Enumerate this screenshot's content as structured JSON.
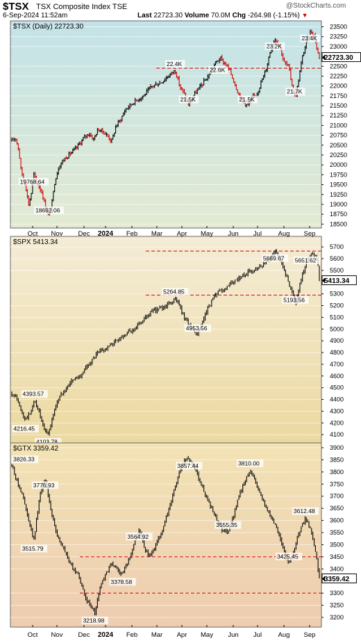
{
  "header": {
    "symbol": "$TSX",
    "name": "TSX Composite Index",
    "exchange": "TSE",
    "datetime": "6-Sep-2024 11:52am",
    "last_label": "Last",
    "last_value": "22723.30",
    "volume_label": "Volume",
    "volume_value": "70.0M",
    "chg_label": "Chg",
    "chg_value": "-264.98 (-1.15%)",
    "logo": "@StockCharts.com"
  },
  "x_axis": {
    "labels": [
      "Oct",
      "Nov",
      "Dec",
      "2024",
      "Feb",
      "Mar",
      "Apr",
      "May",
      "Jun",
      "Jul",
      "Aug",
      "Sep"
    ]
  },
  "chart_data": [
    {
      "type": "line",
      "title": "$TSX (Daily) 22723.30",
      "last": "22723.30",
      "ylim": [
        18400,
        23650
      ],
      "yticks": [
        18500,
        18750,
        19000,
        19250,
        19500,
        19750,
        20000,
        20250,
        20500,
        20750,
        21000,
        21250,
        21500,
        21750,
        22000,
        22250,
        22500,
        22723.3,
        23000,
        23250,
        23500
      ],
      "ytick_labels": [
        "18500",
        "18750",
        "19000",
        "19250",
        "19500",
        "19750",
        "20000",
        "20250",
        "20500",
        "20750",
        "21000",
        "21250",
        "21500",
        "21750",
        "22000",
        "22250",
        "22500",
        "22723.30",
        "23000",
        "23250",
        "23500"
      ],
      "anchors": [
        [
          0,
          20600
        ],
        [
          0.8,
          20700
        ],
        [
          1.5,
          20400
        ],
        [
          2,
          19900
        ],
        [
          2.5,
          19650
        ],
        [
          3,
          19500
        ],
        [
          3.7,
          19000
        ],
        [
          4.2,
          19200
        ],
        [
          4.8,
          19770
        ],
        [
          5.5,
          19550
        ],
        [
          6.5,
          19350
        ],
        [
          7.5,
          18900
        ],
        [
          8.2,
          18692
        ],
        [
          8.8,
          19000
        ],
        [
          9.5,
          19600
        ],
        [
          10.5,
          20000
        ],
        [
          12,
          20200
        ],
        [
          14,
          20400
        ],
        [
          16,
          20700
        ],
        [
          17,
          20800
        ],
        [
          18,
          20650
        ],
        [
          19,
          20900
        ],
        [
          20,
          20850
        ],
        [
          21,
          20750
        ],
        [
          22,
          20600
        ],
        [
          23,
          21000
        ],
        [
          24,
          21150
        ],
        [
          25,
          21400
        ],
        [
          27,
          21600
        ],
        [
          29,
          21750
        ],
        [
          31,
          22000
        ],
        [
          33,
          22100
        ],
        [
          35,
          22300
        ],
        [
          36,
          22400
        ],
        [
          37,
          22000
        ],
        [
          38,
          21800
        ],
        [
          39,
          21500
        ],
        [
          40,
          21750
        ],
        [
          41,
          21900
        ],
        [
          42,
          22050
        ],
        [
          43,
          22200
        ],
        [
          44,
          22400
        ],
        [
          45,
          22600
        ],
        [
          46,
          22700
        ],
        [
          47,
          22550
        ],
        [
          48,
          22400
        ],
        [
          49,
          22100
        ],
        [
          50,
          21800
        ],
        [
          51,
          21600
        ],
        [
          52,
          21500
        ],
        [
          53,
          21700
        ],
        [
          54,
          21800
        ],
        [
          55,
          22100
        ],
        [
          56,
          22400
        ],
        [
          57,
          22900
        ],
        [
          58,
          23200
        ],
        [
          59,
          23050
        ],
        [
          60,
          22600
        ],
        [
          61,
          22500
        ],
        [
          62,
          21900
        ],
        [
          62.5,
          21700
        ],
        [
          63,
          22000
        ],
        [
          64,
          22700
        ],
        [
          65,
          23150
        ],
        [
          66,
          23400
        ],
        [
          66.8,
          23250
        ],
        [
          67.3,
          22900
        ],
        [
          67.8,
          22723
        ]
      ],
      "t_min": 0,
      "t_max": 67.8,
      "ref_lines": [
        22450
      ],
      "annotations": [
        {
          "text": "19768.64",
          "t": 4.8,
          "y": 19768.64
        },
        {
          "text": "18692.06",
          "t": 8.2,
          "y": 18692.06
        },
        {
          "text": "22.4K",
          "t": 36,
          "y": 22400
        },
        {
          "text": "21.5K",
          "t": 39,
          "y": 21500
        },
        {
          "text": "22.6K",
          "t": 45.5,
          "y": 22600
        },
        {
          "text": "21.5K",
          "t": 52,
          "y": 21500
        },
        {
          "text": "23.2K",
          "t": 58,
          "y": 23200
        },
        {
          "text": "21.7K",
          "t": 62.5,
          "y": 21700
        },
        {
          "text": "23.4K",
          "t": 66,
          "y": 23400
        }
      ]
    },
    {
      "type": "line",
      "title": "$SPX 5413.34",
      "last": "5413.34",
      "ylim": [
        4030,
        5790
      ],
      "yticks": [
        4100,
        4200,
        4300,
        4400,
        4500,
        4600,
        4700,
        4800,
        4900,
        5000,
        5100,
        5200,
        5300,
        5413.34,
        5500,
        5600,
        5700
      ],
      "ytick_labels": [
        "4100",
        "4200",
        "4300",
        "4400",
        "4500",
        "4600",
        "4700",
        "4800",
        "4900",
        "5000",
        "5100",
        "5200",
        "5300",
        "5413.34",
        "5500",
        "5600",
        "5700"
      ],
      "anchors": [
        [
          0,
          4450
        ],
        [
          1,
          4420
        ],
        [
          2,
          4300
        ],
        [
          3,
          4230
        ],
        [
          4,
          4280
        ],
        [
          5,
          4393
        ],
        [
          6,
          4300
        ],
        [
          7,
          4150
        ],
        [
          8,
          4104
        ],
        [
          9,
          4250
        ],
        [
          10,
          4380
        ],
        [
          11,
          4450
        ],
        [
          13,
          4550
        ],
        [
          15,
          4600
        ],
        [
          17,
          4700
        ],
        [
          19,
          4800
        ],
        [
          21,
          4840
        ],
        [
          23,
          4900
        ],
        [
          25,
          4960
        ],
        [
          27,
          5000
        ],
        [
          29,
          5080
        ],
        [
          31,
          5150
        ],
        [
          33,
          5180
        ],
        [
          35,
          5220
        ],
        [
          36,
          5260
        ],
        [
          37,
          5200
        ],
        [
          38,
          5100
        ],
        [
          39,
          5050
        ],
        [
          40,
          4970
        ],
        [
          41,
          4953
        ],
        [
          42,
          5050
        ],
        [
          43,
          5150
        ],
        [
          44,
          5230
        ],
        [
          45,
          5300
        ],
        [
          47,
          5340
        ],
        [
          49,
          5400
        ],
        [
          51,
          5460
        ],
        [
          53,
          5500
        ],
        [
          55,
          5550
        ],
        [
          57,
          5600
        ],
        [
          58,
          5669
        ],
        [
          59,
          5600
        ],
        [
          60,
          5500
        ],
        [
          61,
          5400
        ],
        [
          62,
          5300
        ],
        [
          62.5,
          5190
        ],
        [
          63,
          5300
        ],
        [
          64,
          5450
        ],
        [
          65,
          5580
        ],
        [
          66,
          5640
        ],
        [
          67,
          5620
        ],
        [
          67.5,
          5550
        ],
        [
          67.8,
          5413
        ]
      ],
      "t_min": 0,
      "t_max": 67.8,
      "ref_lines": [
        5290,
        5665
      ],
      "annotations": [
        {
          "text": "4393.57",
          "t": 5,
          "y": 4393.57
        },
        {
          "text": "4216.45",
          "t": 3,
          "y": 4216.45
        },
        {
          "text": "4103.78",
          "t": 8,
          "y": 4103.78
        },
        {
          "text": "5264.85",
          "t": 36,
          "y": 5264.85
        },
        {
          "text": "4953.56",
          "t": 41,
          "y": 4953.56
        },
        {
          "text": "5669.67",
          "t": 58,
          "y": 5669.67
        },
        {
          "text": "5193.56",
          "t": 62.5,
          "y": 5193.56
        },
        {
          "text": "5651.62",
          "t": 66,
          "y": 5651.62
        }
      ]
    },
    {
      "type": "line",
      "title": "$GTX 3359.42",
      "last": "3359.42",
      "ylim": [
        3160,
        3920
      ],
      "yticks": [
        3200,
        3250,
        3300,
        3359.42,
        3400,
        3450,
        3500,
        3550,
        3600,
        3650,
        3700,
        3750,
        3800,
        3850,
        3900
      ],
      "ytick_labels": [
        "3200",
        "3250",
        "3300",
        "3359.42",
        "3400",
        "3450",
        "3500",
        "3550",
        "3600",
        "3650",
        "3700",
        "3750",
        "3800",
        "3850",
        "3900"
      ],
      "anchors": [
        [
          0,
          3826
        ],
        [
          1,
          3760
        ],
        [
          2,
          3700
        ],
        [
          3,
          3600
        ],
        [
          4,
          3516
        ],
        [
          5,
          3700
        ],
        [
          6,
          3777
        ],
        [
          7,
          3650
        ],
        [
          8,
          3550
        ],
        [
          9,
          3500
        ],
        [
          10,
          3450
        ],
        [
          11,
          3400
        ],
        [
          12,
          3380
        ],
        [
          13,
          3300
        ],
        [
          14,
          3250
        ],
        [
          15,
          3219
        ],
        [
          16,
          3330
        ],
        [
          17,
          3380
        ],
        [
          18,
          3420
        ],
        [
          19,
          3400
        ],
        [
          20,
          3379
        ],
        [
          21,
          3430
        ],
        [
          22,
          3500
        ],
        [
          23,
          3565
        ],
        [
          24,
          3480
        ],
        [
          25,
          3450
        ],
        [
          26,
          3500
        ],
        [
          27,
          3550
        ],
        [
          28,
          3620
        ],
        [
          29,
          3700
        ],
        [
          30,
          3780
        ],
        [
          31,
          3840
        ],
        [
          32,
          3857
        ],
        [
          33,
          3820
        ],
        [
          34,
          3760
        ],
        [
          35,
          3700
        ],
        [
          36,
          3650
        ],
        [
          37,
          3600
        ],
        [
          38,
          3560
        ],
        [
          39,
          3555
        ],
        [
          40,
          3620
        ],
        [
          41,
          3700
        ],
        [
          42,
          3760
        ],
        [
          43,
          3810
        ],
        [
          44,
          3760
        ],
        [
          45,
          3700
        ],
        [
          46,
          3650
        ],
        [
          47,
          3600
        ],
        [
          48,
          3560
        ],
        [
          49,
          3480
        ],
        [
          50,
          3425
        ],
        [
          51,
          3480
        ],
        [
          52,
          3560
        ],
        [
          53,
          3612
        ],
        [
          54,
          3560
        ],
        [
          55,
          3450
        ],
        [
          55.5,
          3359
        ]
      ],
      "t_min": 0,
      "t_max": 55.5,
      "ref_lines": [
        3450,
        3300
      ],
      "annotations": [
        {
          "text": "3826.33",
          "t": 0,
          "y": 3826.33
        },
        {
          "text": "3776.93",
          "t": 6,
          "y": 3776.93
        },
        {
          "text": "3515.79",
          "t": 4,
          "y": 3515.79
        },
        {
          "text": "3218.98",
          "t": 15,
          "y": 3218.98
        },
        {
          "text": "3378.58",
          "t": 20,
          "y": 3378.58
        },
        {
          "text": "3564.92",
          "t": 23,
          "y": 3564.92
        },
        {
          "text": "3857.44",
          "t": 32,
          "y": 3857.44
        },
        {
          "text": "3555.35",
          "t": 39,
          "y": 3555.35
        },
        {
          "text": "3810.00",
          "t": 43,
          "y": 3810.0
        },
        {
          "text": "3425.45",
          "t": 50,
          "y": 3425.45
        },
        {
          "text": "3612.48",
          "t": 53,
          "y": 3612.48
        }
      ]
    }
  ]
}
